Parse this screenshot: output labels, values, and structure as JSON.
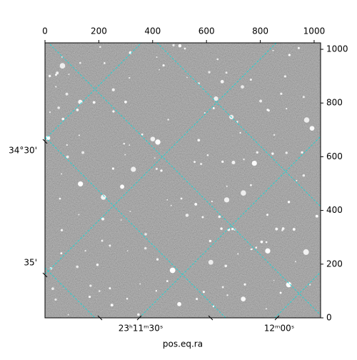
{
  "chart_data": {
    "type": "image",
    "xlabel": "pos.eq.ra",
    "xlim": [
      0,
      1024
    ],
    "xticks": [
      0,
      200,
      400,
      600,
      800,
      1000
    ],
    "ylim": [
      0,
      1024
    ],
    "yticks": [
      0,
      200,
      400,
      600,
      800,
      1000
    ],
    "ra_labels": [
      "23ʰ11ᵐ30ˢ",
      "12ᵐ00ˢ"
    ],
    "dec_labels": [
      "34°30'",
      "35'"
    ],
    "grid": true,
    "grid_color": "#22d3d3"
  }
}
